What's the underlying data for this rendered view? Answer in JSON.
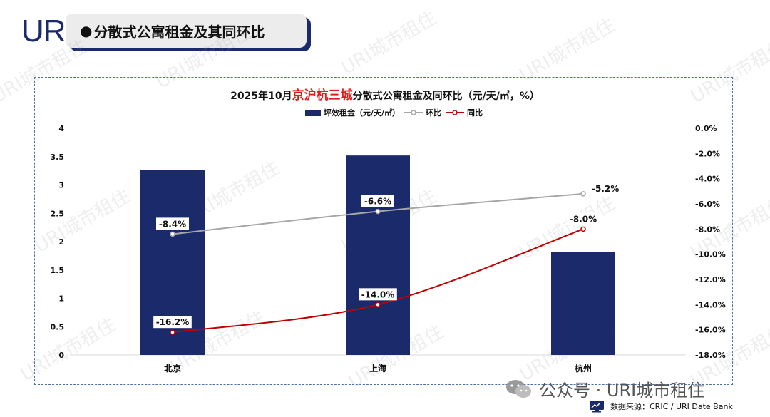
{
  "header": {
    "logo_text": "URI",
    "banner_title": "分散式公寓租金及其同环比",
    "banner_bullet": "●"
  },
  "chart_title": {
    "prefix": "2025年10月",
    "highlight": "京沪杭三城",
    "suffix": "分散式公寓租金及同环比（元/天/㎡，%）"
  },
  "colors": {
    "bar": "#1b2a6b",
    "mom_line": "#a6a6a6",
    "yoy_line": "#c00000",
    "title_highlight": "#e01c1c",
    "panel_border": "#4a6fa8"
  },
  "chart_data": {
    "type": "bar",
    "categories": [
      "北京",
      "上海",
      "杭州"
    ],
    "series": [
      {
        "name": "坪效租金（元/天/㎡）",
        "type": "bar",
        "axis": "left",
        "values": [
          3.27,
          3.52,
          1.82
        ]
      },
      {
        "name": "环比",
        "type": "line",
        "axis": "right",
        "values": [
          -8.4,
          -6.6,
          -5.2
        ]
      },
      {
        "name": "同比",
        "type": "line",
        "axis": "right",
        "values": [
          -16.2,
          -14.0,
          -8.0
        ]
      }
    ],
    "y_left": {
      "ylim": [
        0,
        4
      ],
      "ticks": [
        "0",
        "0.5",
        "1",
        "1.5",
        "2",
        "2.5",
        "3",
        "3.5",
        "4"
      ]
    },
    "y_right": {
      "ylim": [
        -18,
        0
      ],
      "ticks": [
        "-18.0%",
        "-16.0%",
        "-14.0%",
        "-12.0%",
        "-10.0%",
        "-8.0%",
        "-6.0%",
        "-4.0%",
        "-2.0%",
        "0.0%"
      ]
    },
    "data_labels": {
      "mom": [
        "-8.4%",
        "-6.6%",
        "-5.2%"
      ],
      "yoy": [
        "-16.2%",
        "-14.0%",
        "-8.0%"
      ]
    },
    "legend_position": "top-center",
    "grid": false
  },
  "watermark_text": "URI城市租住",
  "footer": {
    "wechat_text": "公众号 · URI城市租住",
    "source_text": "数据来源：CRIC / URI Date Bank"
  }
}
